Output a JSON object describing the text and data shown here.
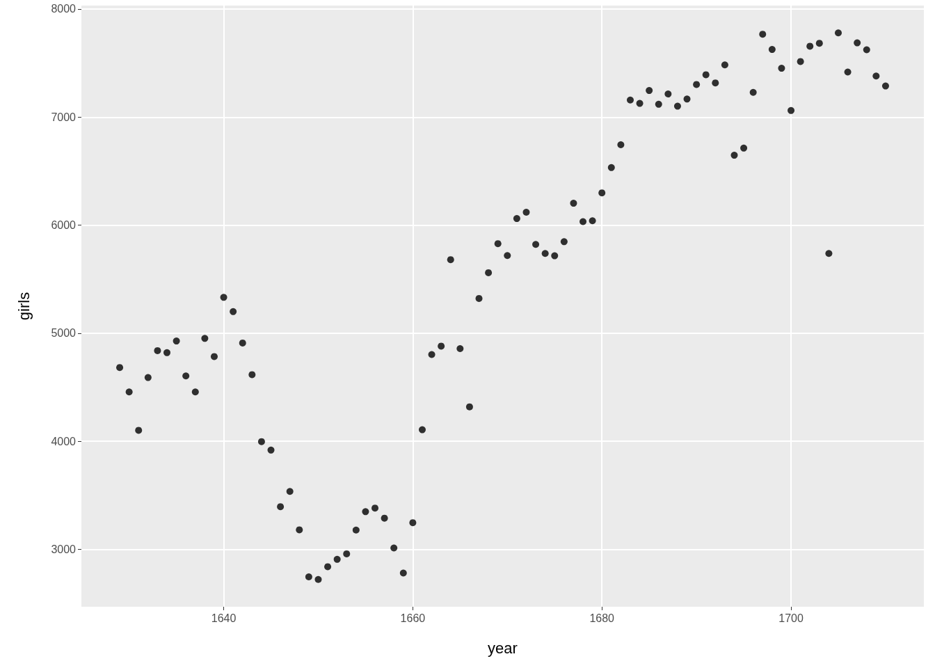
{
  "chart_data": {
    "type": "scatter",
    "xlabel": "year",
    "ylabel": "girls",
    "x": [
      1629,
      1630,
      1631,
      1632,
      1633,
      1634,
      1635,
      1636,
      1637,
      1638,
      1639,
      1640,
      1641,
      1642,
      1643,
      1644,
      1645,
      1646,
      1647,
      1648,
      1649,
      1650,
      1651,
      1652,
      1653,
      1654,
      1655,
      1656,
      1657,
      1658,
      1659,
      1660,
      1661,
      1662,
      1663,
      1664,
      1665,
      1666,
      1667,
      1668,
      1669,
      1670,
      1671,
      1672,
      1673,
      1674,
      1675,
      1676,
      1677,
      1678,
      1679,
      1680,
      1681,
      1682,
      1683,
      1684,
      1685,
      1686,
      1687,
      1688,
      1689,
      1690,
      1691,
      1692,
      1693,
      1694,
      1695,
      1696,
      1697,
      1698,
      1699,
      1700,
      1701,
      1702,
      1703,
      1704,
      1705,
      1706,
      1707,
      1708,
      1709,
      1710
    ],
    "values": [
      4683,
      4457,
      4102,
      4590,
      4839,
      4820,
      4928,
      4605,
      4457,
      4952,
      4784,
      5332,
      5200,
      4910,
      4617,
      3997,
      3919,
      3395,
      3536,
      3181,
      2746,
      2722,
      2840,
      2908,
      2959,
      3179,
      3349,
      3382,
      3289,
      3013,
      2781,
      3247,
      4107,
      4803,
      4881,
      5681,
      4858,
      4319,
      5322,
      5560,
      5829,
      5719,
      6061,
      6120,
      5822,
      5738,
      5717,
      5847,
      6203,
      6033,
      6041,
      6299,
      6533,
      6744,
      7158,
      7127,
      7246,
      7119,
      7214,
      7101,
      7167,
      7302,
      7392,
      7316,
      7483,
      6647,
      6713,
      7229,
      7767,
      7626,
      7452,
      7061,
      7514,
      7656,
      7683,
      5738,
      7779,
      7417,
      7687,
      7623,
      7380,
      7288
    ],
    "color": "#000000",
    "marker": "circle",
    "xlim": [
      1624.95,
      1714.05
    ],
    "xticks": [
      1640,
      1660,
      1680,
      1700
    ],
    "ylim": [
      2469,
      8032
    ],
    "yticks": [
      3000,
      4000,
      5000,
      6000,
      7000,
      8000
    ],
    "grid": true
  }
}
